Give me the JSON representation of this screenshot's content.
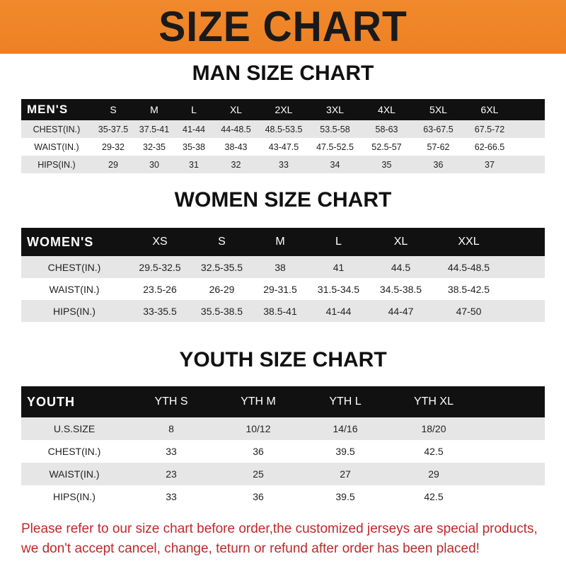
{
  "banner": {
    "title": "SIZE CHART",
    "color": "#ee8024"
  },
  "men": {
    "title": "MAN SIZE CHART",
    "header": [
      "MEN'S",
      "S",
      "M",
      "L",
      "XL",
      "2XL",
      "3XL",
      "4XL",
      "5XL",
      "6XL"
    ],
    "rows": [
      [
        "CHEST(IN.)",
        "35-37.5",
        "37.5-41",
        "41-44",
        "44-48.5",
        "48.5-53.5",
        "53.5-58",
        "58-63",
        "63-67.5",
        "67.5-72"
      ],
      [
        "WAIST(IN.)",
        "29-32",
        "32-35",
        "35-38",
        "38-43",
        "43-47.5",
        "47.5-52.5",
        "52.5-57",
        "57-62",
        "62-66.5"
      ],
      [
        "HIPS(IN.)",
        "29",
        "30",
        "31",
        "32",
        "33",
        "34",
        "35",
        "36",
        "37"
      ]
    ]
  },
  "women": {
    "title": "WOMEN SIZE CHART",
    "header": [
      "WOMEN'S",
      "XS",
      "S",
      "M",
      "L",
      "XL",
      "XXL"
    ],
    "rows": [
      [
        "CHEST(IN.)",
        "29.5-32.5",
        "32.5-35.5",
        "38",
        "41",
        "44.5",
        "44.5-48.5"
      ],
      [
        "WAIST(IN.)",
        "23.5-26",
        "26-29",
        "29-31.5",
        "31.5-34.5",
        "34.5-38.5",
        "38.5-42.5"
      ],
      [
        "HIPS(IN.)",
        "33-35.5",
        "35.5-38.5",
        "38.5-41",
        "41-44",
        "44-47",
        "47-50"
      ]
    ]
  },
  "youth": {
    "title": "YOUTH SIZE CHART",
    "header": [
      "YOUTH",
      "YTH S",
      "YTH M",
      "YTH L",
      "YTH XL"
    ],
    "rows": [
      [
        "U.S.SIZE",
        "8",
        "10/12",
        "14/16",
        "18/20"
      ],
      [
        "CHEST(IN.)",
        "33",
        "36",
        "39.5",
        "42.5"
      ],
      [
        "WAIST(IN.)",
        "23",
        "25",
        "27",
        "29"
      ],
      [
        "HIPS(IN.)",
        "33",
        "36",
        "39.5",
        "42.5"
      ]
    ]
  },
  "note": {
    "line1": "Please refer to our size chart before order,the customized jerseys are special products,",
    "line2": "we don't accept cancel, change, teturn or refund after order has been placed!",
    "color": "#c0282a"
  }
}
